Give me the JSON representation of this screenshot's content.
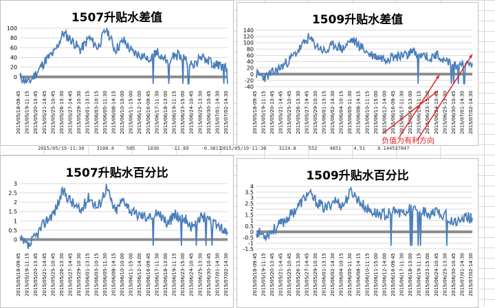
{
  "spreadsheet": {
    "row_strip_1": [
      "2015/05/19-11:30",
      "3108.4",
      "585",
      "1030",
      "-11.89",
      "-0.3811"
    ],
    "row_strip_2": [
      "2015/05/19-11:30",
      "3124.8",
      "552",
      "4851",
      "4.51",
      "0.144537847"
    ]
  },
  "annotation": {
    "text": "负值为有利方向",
    "color": "#e02020"
  },
  "line_color": "#4a7ebb",
  "chart_data": [
    {
      "type": "line",
      "title": "1507升贴水差值",
      "x": [
        "2015/05/18-09:45",
        "2015/05/19-11:15",
        "2015/05/20-13:45",
        "2015/05/21-14:45",
        "2015/05/25-10:45",
        "2015/05/26-13:30",
        "2015/05/27-14:45",
        "2015/05/29-10:30",
        "2015/06/01-13:15",
        "2015/06/03-10:15",
        "2015/06/05-11:30",
        "2015/06/08-14:15",
        "2015/06/10-10:00",
        "2015/06/11-15:00",
        "2015/06/12-14:00",
        "2015/06/16-09:45",
        "2015/06/17-11:30",
        "2015/06/18-13:00",
        "2015/06/19-11:15",
        "2015/06/23-15:00",
        "2015/06/24-10:45",
        "2015/06/25-13:30",
        "2015/06/30-10:45",
        "2015/07/01-14:30",
        "2015/07/02-14:30"
      ],
      "values": [
        0,
        -12,
        10,
        35,
        50,
        90,
        75,
        55,
        80,
        60,
        100,
        55,
        75,
        50,
        45,
        40,
        50,
        30,
        45,
        40,
        20,
        45,
        30,
        25,
        15
      ],
      "ylim": [
        -20,
        100
      ],
      "yticks": [
        0,
        20,
        40,
        60,
        80,
        100
      ]
    },
    {
      "type": "line",
      "title": "1509升贴水差值",
      "x": [
        "2015/05/18-09:45",
        "2015/05/19-11:15",
        "2015/05/20-13:45",
        "2015/05/21-14:45",
        "2015/05/25-10:45",
        "2015/05/26-13:30",
        "2015/05/27-14:45",
        "2015/05/29-10:30",
        "2015/06/01-13:15",
        "2015/06/02-14:30",
        "2015/06/04-10:15",
        "2015/06/05-11:30",
        "2015/06/08-14:15",
        "2015/06/10-11:15",
        "2015/06/11-15:00",
        "2015/06/12-14:00",
        "2015/06/16-09:45",
        "2015/06/17-11:30",
        "2015/06/18-13:00",
        "2015/06/19-11:15",
        "2015/06/23-15:00",
        "2015/06/24-10:45",
        "2015/06/25-13:30",
        "2015/06/30-10:45",
        "2015/07/01-14:30",
        "2015/07/02-14:30"
      ],
      "values": [
        0,
        -10,
        5,
        25,
        50,
        80,
        115,
        90,
        70,
        95,
        80,
        110,
        90,
        65,
        55,
        50,
        55,
        60,
        70,
        65,
        50,
        60,
        45,
        25,
        40,
        35
      ],
      "ylim": [
        -40,
        140
      ],
      "yticks": [
        -40,
        -20,
        0,
        20,
        40,
        60,
        80,
        100,
        120,
        140
      ]
    },
    {
      "type": "line",
      "title": "1507升贴水百分比",
      "x": [
        "2015/05/18-09:45",
        "2015/05/19-11:15",
        "2015/05/20-13:45",
        "2015/05/21-14:45",
        "2015/05/25-10:45",
        "2015/05/26-13:30",
        "2015/05/27-14:45",
        "2015/05/29-10:30",
        "2015/06/01-13:15",
        "2015/06/03-10:15",
        "2015/06/05-11:30",
        "2015/06/08-14:15",
        "2015/06/10-10:00",
        "2015/06/11-15:00",
        "2015/06/12-14:00",
        "2015/06/16-09:45",
        "2015/06/17-11:30",
        "2015/06/18-13:00",
        "2015/06/19-11:15",
        "2015/06/23-15:00",
        "2015/06/24-10:45",
        "2015/06/25-13:30",
        "2015/06/30-10:45",
        "2015/07/01-14:30",
        "2015/07/02-14:30"
      ],
      "values": [
        0,
        -0.4,
        0.3,
        1.0,
        1.5,
        2.6,
        2.0,
        1.5,
        2.3,
        1.7,
        2.8,
        1.5,
        2.2,
        1.4,
        1.3,
        1.2,
        1.5,
        0.9,
        1.3,
        1.2,
        0.6,
        1.3,
        0.9,
        0.7,
        0.4
      ],
      "ylim": [
        -0.5,
        3
      ],
      "yticks": [
        0,
        0.5,
        1,
        1.5,
        2,
        2.5,
        3
      ]
    },
    {
      "type": "line",
      "title": "1509升贴水百分比",
      "x": [
        "2015/05/18-09:45",
        "2015/05/19-11:15",
        "2015/05/20-13:45",
        "2015/05/21-14:45",
        "2015/05/25-10:45",
        "2015/05/26-13:30",
        "2015/05/27-14:45",
        "2015/05/29-10:30",
        "2015/06/01-13:15",
        "2015/06/02-14:30",
        "2015/06/04-10:15",
        "2015/06/05-11:30",
        "2015/06/08-14:15",
        "2015/06/10-11:15",
        "2015/06/11-15:00",
        "2015/06/12-14:00",
        "2015/06/16-09:45",
        "2015/06/17-11:30",
        "2015/06/18-13:00",
        "2015/06/19-11:15",
        "2015/06/23-15:00",
        "2015/06/24-10:45",
        "2015/06/25-13:30",
        "2015/06/30-10:45",
        "2015/07/01-14:30",
        "2015/07/02-14:30"
      ],
      "values": [
        0,
        -0.3,
        0.2,
        0.8,
        1.5,
        2.4,
        3.4,
        2.6,
        2.0,
        2.8,
        2.3,
        3.6,
        2.6,
        1.9,
        1.6,
        1.5,
        1.7,
        1.8,
        2.0,
        1.9,
        1.5,
        1.8,
        1.4,
        0.8,
        1.3,
        1.2
      ],
      "ylim": [
        -1.5,
        4
      ],
      "yticks": [
        -1.5,
        -1,
        -0.5,
        0,
        0.5,
        1,
        1.5,
        2,
        2.5,
        3,
        3.5,
        4
      ]
    }
  ]
}
